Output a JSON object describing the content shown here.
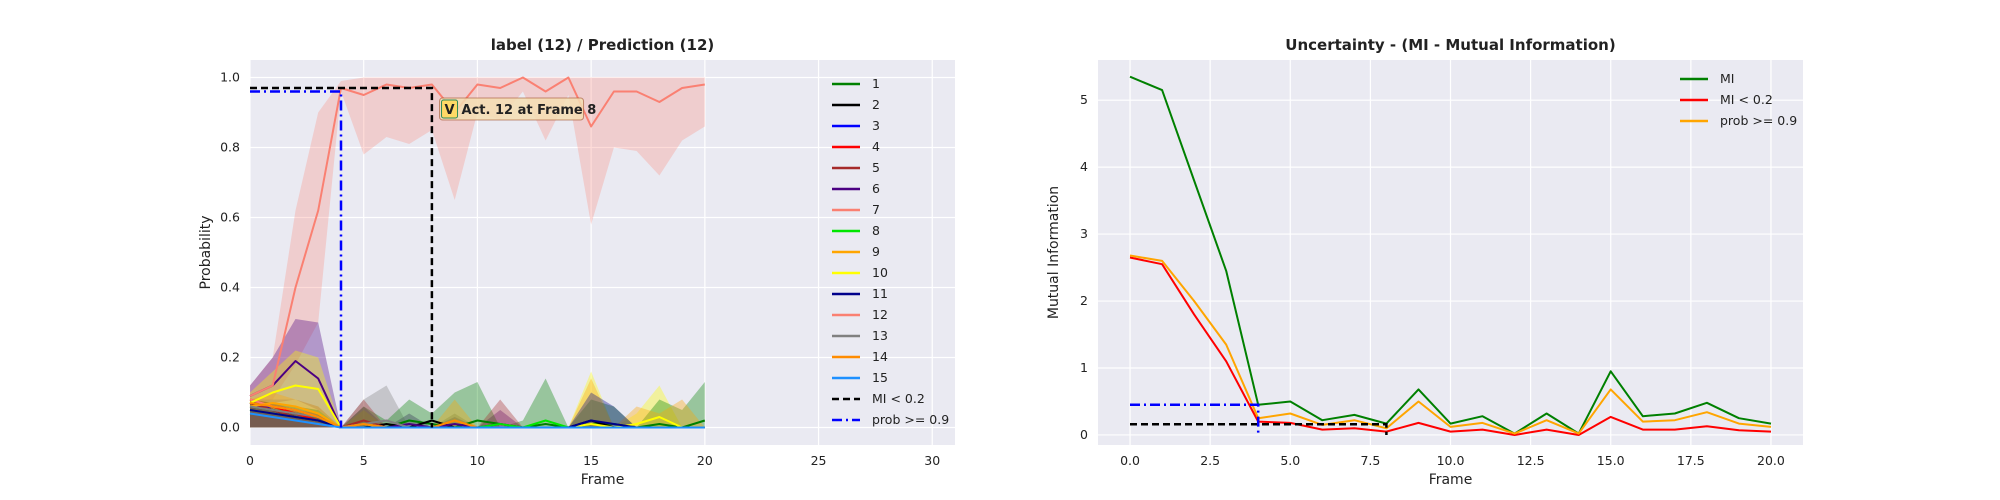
{
  "chart_data": [
    {
      "type": "line",
      "title": "label (12) / Prediction (12)",
      "xlabel": "Frame",
      "ylabel": "Probability",
      "xlim": [
        0,
        31
      ],
      "ylim": [
        -0.05,
        1.05
      ],
      "xticks": [
        0,
        5,
        10,
        15,
        20,
        25,
        30
      ],
      "yticks": [
        0.0,
        0.2,
        0.4,
        0.6,
        0.8,
        1.0
      ],
      "grid": true,
      "legend_position": "right",
      "x": [
        0,
        1,
        2,
        3,
        4,
        5,
        6,
        7,
        8,
        9,
        10,
        11,
        12,
        13,
        14,
        15,
        16,
        17,
        18,
        19,
        20
      ],
      "series": [
        {
          "name": "1",
          "color": "#008000",
          "values": [
            0.06,
            0.05,
            0.04,
            0.03,
            0.0,
            0.01,
            0.0,
            0.02,
            0.01,
            0.0,
            0.02,
            0.01,
            0.0,
            0.01,
            0.0,
            0.01,
            0.01,
            0.0,
            0.01,
            0.0,
            0.02
          ]
        },
        {
          "name": "2",
          "color": "#000000",
          "values": [
            0.07,
            0.05,
            0.03,
            0.02,
            0.0,
            0.0,
            0.01,
            0.0,
            0.02,
            0.0,
            0.0,
            0.0,
            0.0,
            0.0,
            0.0,
            0.02,
            0.0,
            0.0,
            0.0,
            0.0,
            0.0
          ]
        },
        {
          "name": "3",
          "color": "#0000ff",
          "values": [
            0.06,
            0.06,
            0.05,
            0.03,
            0.0,
            0.0,
            0.0,
            0.0,
            0.0,
            0.0,
            0.0,
            0.0,
            0.0,
            0.0,
            0.0,
            0.0,
            0.0,
            0.0,
            0.0,
            0.0,
            0.0
          ]
        },
        {
          "name": "4",
          "color": "#ff0000",
          "values": [
            0.08,
            0.06,
            0.04,
            0.02,
            0.0,
            0.0,
            0.0,
            0.0,
            0.0,
            0.0,
            0.0,
            0.0,
            0.0,
            0.0,
            0.0,
            0.0,
            0.0,
            0.0,
            0.0,
            0.0,
            0.0
          ]
        },
        {
          "name": "5",
          "color": "#a52a2a",
          "values": [
            0.07,
            0.05,
            0.03,
            0.02,
            0.0,
            0.02,
            0.0,
            0.0,
            0.0,
            0.0,
            0.0,
            0.0,
            0.0,
            0.0,
            0.0,
            0.0,
            0.0,
            0.0,
            0.0,
            0.0,
            0.0
          ]
        },
        {
          "name": "6",
          "color": "#4b0082",
          "values": [
            0.09,
            0.12,
            0.19,
            0.14,
            0.0,
            0.01,
            0.0,
            0.01,
            0.0,
            0.01,
            0.0,
            0.01,
            0.0,
            0.0,
            0.0,
            0.0,
            0.0,
            0.0,
            0.0,
            0.0,
            0.0
          ]
        },
        {
          "name": "7",
          "color": "#fa8072",
          "values": [
            0.08,
            0.06,
            0.05,
            0.03,
            0.0,
            0.0,
            0.0,
            0.0,
            0.0,
            0.0,
            0.0,
            0.0,
            0.0,
            0.0,
            0.0,
            0.0,
            0.0,
            0.0,
            0.0,
            0.0,
            0.0
          ]
        },
        {
          "name": "8",
          "color": "#00e600",
          "values": [
            0.05,
            0.04,
            0.03,
            0.02,
            0.0,
            0.0,
            0.0,
            0.0,
            0.0,
            0.0,
            0.0,
            0.01,
            0.0,
            0.02,
            0.0,
            0.0,
            0.0,
            0.0,
            0.0,
            0.0,
            0.0
          ]
        },
        {
          "name": "9",
          "color": "#ffa500",
          "values": [
            0.06,
            0.07,
            0.06,
            0.04,
            0.0,
            0.0,
            0.0,
            0.0,
            0.0,
            0.0,
            0.0,
            0.0,
            0.0,
            0.0,
            0.0,
            0.0,
            0.0,
            0.0,
            0.0,
            0.0,
            0.0
          ]
        },
        {
          "name": "10",
          "color": "#ffff00",
          "values": [
            0.07,
            0.1,
            0.12,
            0.11,
            0.0,
            0.01,
            0.0,
            0.0,
            0.0,
            0.0,
            0.0,
            0.0,
            0.0,
            0.0,
            0.0,
            0.01,
            0.0,
            0.01,
            0.03,
            0.0,
            0.0
          ]
        },
        {
          "name": "11",
          "color": "#00008b",
          "values": [
            0.05,
            0.04,
            0.03,
            0.02,
            0.0,
            0.0,
            0.0,
            0.0,
            0.0,
            0.0,
            0.0,
            0.0,
            0.0,
            0.0,
            0.0,
            0.02,
            0.01,
            0.0,
            0.0,
            0.0,
            0.0
          ]
        },
        {
          "name": "12",
          "color": "#fa8072",
          "values": [
            0.09,
            0.12,
            0.4,
            0.62,
            0.97,
            0.95,
            0.98,
            0.97,
            0.98,
            0.9,
            0.98,
            0.97,
            1.0,
            0.96,
            1.0,
            0.86,
            0.96,
            0.96,
            0.93,
            0.97,
            0.98
          ]
        },
        {
          "name": "13",
          "color": "#808080",
          "values": [
            0.06,
            0.05,
            0.04,
            0.03,
            0.0,
            0.01,
            0.02,
            0.0,
            0.0,
            0.0,
            0.0,
            0.0,
            0.0,
            0.0,
            0.0,
            0.0,
            0.0,
            0.0,
            0.0,
            0.0,
            0.0
          ]
        },
        {
          "name": "14",
          "color": "#ff8c00",
          "values": [
            0.07,
            0.06,
            0.05,
            0.03,
            0.0,
            0.01,
            0.0,
            0.0,
            0.0,
            0.02,
            0.0,
            0.0,
            0.0,
            0.0,
            0.0,
            0.0,
            0.0,
            0.0,
            0.0,
            0.0,
            0.0
          ]
        },
        {
          "name": "15",
          "color": "#1e90ff",
          "values": [
            0.04,
            0.03,
            0.02,
            0.01,
            0.0,
            0.0,
            0.0,
            0.0,
            0.0,
            0.0,
            0.0,
            0.0,
            0.0,
            0.0,
            0.0,
            0.0,
            0.0,
            0.0,
            0.0,
            0.0,
            0.0
          ]
        }
      ],
      "bands": [
        {
          "series": "12",
          "lower": [
            0.05,
            0.08,
            0.18,
            0.3,
            0.96,
            0.78,
            0.83,
            0.81,
            0.85,
            0.65,
            0.9,
            0.88,
            0.96,
            0.82,
            0.95,
            0.58,
            0.8,
            0.79,
            0.72,
            0.82,
            0.86
          ],
          "upper": [
            0.12,
            0.2,
            0.62,
            0.9,
            0.99,
            1.0,
            1.0,
            1.0,
            1.0,
            1.0,
            1.0,
            1.0,
            1.0,
            1.0,
            1.0,
            1.0,
            1.0,
            1.0,
            1.0,
            1.0,
            1.0
          ]
        },
        {
          "series": "6",
          "lower": [
            0.06,
            0.07,
            0.08,
            0.05,
            0.0,
            0.0,
            0.0,
            0.0,
            0.0,
            0.0,
            0.0,
            0.0,
            0.0,
            0.0,
            0.0,
            0.0,
            0.0,
            0.0,
            0.0,
            0.0,
            0.0
          ],
          "upper": [
            0.12,
            0.2,
            0.31,
            0.3,
            0.0,
            0.06,
            0.0,
            0.04,
            0.0,
            0.03,
            0.0,
            0.05,
            0.0,
            0.0,
            0.0,
            0.0,
            0.0,
            0.0,
            0.0,
            0.0,
            0.0
          ]
        },
        {
          "series": "10",
          "lower": [
            0.0,
            0.0,
            0.0,
            0.0,
            0.0,
            0.0,
            0.0,
            0.0,
            0.0,
            0.0,
            0.0,
            0.0,
            0.0,
            0.0,
            0.0,
            0.0,
            0.0,
            0.0,
            0.0,
            0.0,
            0.0
          ],
          "upper": [
            0.1,
            0.16,
            0.22,
            0.2,
            0.0,
            0.05,
            0.0,
            0.0,
            0.0,
            0.0,
            0.0,
            0.0,
            0.0,
            0.0,
            0.0,
            0.16,
            0.0,
            0.04,
            0.12,
            0.0,
            0.0
          ]
        },
        {
          "series": "13",
          "lower": [
            0.0,
            0.0,
            0.0,
            0.0,
            0.0,
            0.0,
            0.0,
            0.0,
            0.0,
            0.0,
            0.0,
            0.0,
            0.0,
            0.0,
            0.0,
            0.0,
            0.0,
            0.0,
            0.0,
            0.0,
            0.0
          ],
          "upper": [
            0.08,
            0.08,
            0.08,
            0.06,
            0.0,
            0.08,
            0.12,
            0.0,
            0.0,
            0.04,
            0.0,
            0.0,
            0.0,
            0.0,
            0.0,
            0.0,
            0.0,
            0.0,
            0.0,
            0.0,
            0.0
          ]
        },
        {
          "series": "1",
          "lower": [
            0.0,
            0.0,
            0.0,
            0.0,
            0.0,
            0.0,
            0.0,
            0.0,
            0.0,
            0.0,
            0.0,
            0.0,
            0.0,
            0.0,
            0.0,
            0.0,
            0.0,
            0.0,
            0.0,
            0.0,
            0.0
          ],
          "upper": [
            0.08,
            0.07,
            0.06,
            0.05,
            0.0,
            0.06,
            0.02,
            0.08,
            0.04,
            0.1,
            0.13,
            0.0,
            0.02,
            0.14,
            0.0,
            0.08,
            0.06,
            0.0,
            0.08,
            0.05,
            0.13
          ]
        },
        {
          "series": "5",
          "lower": [
            0.0,
            0.0,
            0.0,
            0.0,
            0.0,
            0.0,
            0.0,
            0.0,
            0.0,
            0.0,
            0.0,
            0.0,
            0.0,
            0.0,
            0.0,
            0.0,
            0.0,
            0.0,
            0.0,
            0.0,
            0.0
          ],
          "upper": [
            0.08,
            0.07,
            0.05,
            0.04,
            0.0,
            0.08,
            0.0,
            0.0,
            0.0,
            0.0,
            0.0,
            0.08,
            0.0,
            0.0,
            0.0,
            0.0,
            0.0,
            0.0,
            0.0,
            0.0,
            0.0
          ]
        },
        {
          "series": "9",
          "lower": [
            0.0,
            0.0,
            0.0,
            0.0,
            0.0,
            0.0,
            0.0,
            0.0,
            0.0,
            0.0,
            0.0,
            0.0,
            0.0,
            0.0,
            0.0,
            0.0,
            0.0,
            0.0,
            0.0,
            0.0,
            0.0
          ],
          "upper": [
            0.08,
            0.1,
            0.08,
            0.06,
            0.0,
            0.0,
            0.0,
            0.0,
            0.0,
            0.08,
            0.0,
            0.0,
            0.0,
            0.0,
            0.0,
            0.14,
            0.0,
            0.06,
            0.04,
            0.08,
            0.0
          ]
        },
        {
          "series": "11",
          "lower": [
            0.0,
            0.0,
            0.0,
            0.0,
            0.0,
            0.0,
            0.0,
            0.0,
            0.0,
            0.0,
            0.0,
            0.0,
            0.0,
            0.0,
            0.0,
            0.0,
            0.0,
            0.0,
            0.0,
            0.0,
            0.0
          ],
          "upper": [
            0.06,
            0.05,
            0.04,
            0.03,
            0.0,
            0.0,
            0.0,
            0.0,
            0.0,
            0.0,
            0.0,
            0.0,
            0.0,
            0.0,
            0.0,
            0.1,
            0.06,
            0.0,
            0.0,
            0.0,
            0.0
          ]
        }
      ],
      "reference_lines": [
        {
          "name": "MI < 0.2",
          "color": "#000000",
          "style": "dashed",
          "points": [
            [
              0,
              0.97
            ],
            [
              8,
              0.97
            ],
            [
              8,
              0.0
            ]
          ]
        },
        {
          "name": "prob >= 0.9",
          "color": "#0000ff",
          "style": "dashdot",
          "points": [
            [
              0,
              0.96
            ],
            [
              4,
              0.96
            ],
            [
              4,
              0.0
            ]
          ]
        }
      ],
      "annotations": [
        {
          "text": "Act. 12 at Frame 8",
          "badge": "V",
          "x": 11.5,
          "y": 0.91
        }
      ]
    },
    {
      "type": "line",
      "title": "Uncertainty - (MI - Mutual Information)",
      "xlabel": "Frame",
      "ylabel": "Mutual Information",
      "xlim": [
        -1,
        21
      ],
      "ylim": [
        -0.15,
        5.6
      ],
      "xticks": [
        0.0,
        2.5,
        5.0,
        7.5,
        10.0,
        12.5,
        15.0,
        17.5,
        20.0
      ],
      "yticks": [
        0,
        1,
        2,
        3,
        4,
        5
      ],
      "grid": true,
      "legend_position": "top-right",
      "x": [
        0,
        1,
        2,
        3,
        4,
        5,
        6,
        7,
        8,
        9,
        10,
        11,
        12,
        13,
        14,
        15,
        16,
        17,
        18,
        19,
        20
      ],
      "series": [
        {
          "name": "MI",
          "color": "#008000",
          "values": [
            5.35,
            5.15,
            3.8,
            2.45,
            0.45,
            0.5,
            0.22,
            0.3,
            0.17,
            0.68,
            0.17,
            0.28,
            0.02,
            0.32,
            0.02,
            0.95,
            0.28,
            0.32,
            0.48,
            0.25,
            0.17
          ]
        },
        {
          "name": "MI < 0.2",
          "color": "#ff0000",
          "values": [
            2.65,
            2.55,
            1.8,
            1.1,
            0.2,
            0.18,
            0.08,
            0.1,
            0.05,
            0.18,
            0.05,
            0.08,
            0.0,
            0.08,
            0.0,
            0.27,
            0.08,
            0.08,
            0.13,
            0.07,
            0.05
          ]
        },
        {
          "name": "prob >= 0.9",
          "color": "#ffa500",
          "values": [
            2.68,
            2.6,
            2.0,
            1.35,
            0.25,
            0.32,
            0.15,
            0.22,
            0.1,
            0.5,
            0.12,
            0.18,
            0.02,
            0.22,
            0.02,
            0.68,
            0.2,
            0.22,
            0.34,
            0.17,
            0.12
          ]
        }
      ],
      "reference_lines": [
        {
          "name": "",
          "color": "#000000",
          "style": "dashed",
          "points": [
            [
              0,
              0.16
            ],
            [
              8,
              0.16
            ],
            [
              8,
              0.0
            ]
          ]
        },
        {
          "name": "",
          "color": "#0000ff",
          "style": "dashdot",
          "points": [
            [
              0,
              0.45
            ],
            [
              4,
              0.45
            ],
            [
              4,
              0.0
            ]
          ]
        }
      ]
    }
  ]
}
